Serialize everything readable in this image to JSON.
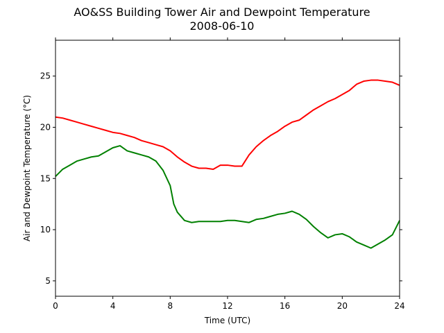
{
  "chart_data": {
    "type": "line",
    "title": "AO&SS Building Tower Air and Dewpoint Temperature",
    "subtitle": "2008-06-10",
    "xlabel": "Time (UTC)",
    "ylabel": "Air and Dewpoint Temperature (°C)",
    "xlim": [
      0,
      24
    ],
    "ylim": [
      3.5,
      28.5
    ],
    "xticks": [
      0,
      4,
      8,
      12,
      16,
      20,
      24
    ],
    "yticks": [
      5,
      10,
      15,
      20,
      25
    ],
    "grid": false,
    "legend": "none",
    "series": [
      {
        "color": "#ff0000",
        "x": [
          0,
          0.5,
          1,
          1.5,
          2,
          2.5,
          3,
          3.5,
          4,
          4.5,
          5,
          5.5,
          6,
          6.5,
          7,
          7.5,
          8,
          8.5,
          9,
          9.5,
          10,
          10.5,
          11,
          11.5,
          12,
          12.5,
          13,
          13.5,
          14,
          14.5,
          15,
          15.5,
          16,
          16.5,
          17,
          17.5,
          18,
          18.5,
          19,
          19.5,
          20,
          20.5,
          21,
          21.5,
          22,
          22.5,
          23,
          23.5,
          24
        ],
        "y": [
          21.0,
          20.9,
          20.7,
          20.5,
          20.3,
          20.1,
          19.9,
          19.7,
          19.5,
          19.4,
          19.2,
          19.0,
          18.7,
          18.5,
          18.3,
          18.1,
          17.7,
          17.1,
          16.6,
          16.2,
          16.0,
          16.0,
          15.9,
          16.3,
          16.3,
          16.2,
          16.2,
          17.3,
          18.1,
          18.7,
          19.2,
          19.6,
          20.1,
          20.5,
          20.7,
          21.2,
          21.7,
          22.1,
          22.5,
          22.8,
          23.2,
          23.6,
          24.2,
          24.5,
          24.6,
          24.6,
          24.5,
          24.4,
          24.1
        ]
      },
      {
        "color": "#008000",
        "x": [
          0,
          0.5,
          1,
          1.5,
          2,
          2.5,
          3,
          3.5,
          4,
          4.5,
          5,
          5.5,
          6,
          6.5,
          7,
          7.5,
          8,
          8.25,
          8.5,
          9,
          9.5,
          10,
          10.5,
          11,
          11.5,
          12,
          12.5,
          13,
          13.5,
          14,
          14.5,
          15,
          15.5,
          16,
          16.5,
          17,
          17.5,
          18,
          18.5,
          19,
          19.5,
          20,
          20.5,
          21,
          21.5,
          22,
          22.5,
          23,
          23.5,
          24
        ],
        "y": [
          15.2,
          15.9,
          16.3,
          16.7,
          16.9,
          17.1,
          17.2,
          17.6,
          18.0,
          18.2,
          17.7,
          17.5,
          17.3,
          17.1,
          16.7,
          15.8,
          14.3,
          12.5,
          11.7,
          10.9,
          10.7,
          10.8,
          10.8,
          10.8,
          10.8,
          10.9,
          10.9,
          10.8,
          10.7,
          11.0,
          11.1,
          11.3,
          11.5,
          11.6,
          11.8,
          11.5,
          11.0,
          10.3,
          9.7,
          9.2,
          9.5,
          9.6,
          9.3,
          8.8,
          8.5,
          8.2,
          8.6,
          9.0,
          9.5,
          10.9
        ]
      }
    ]
  }
}
